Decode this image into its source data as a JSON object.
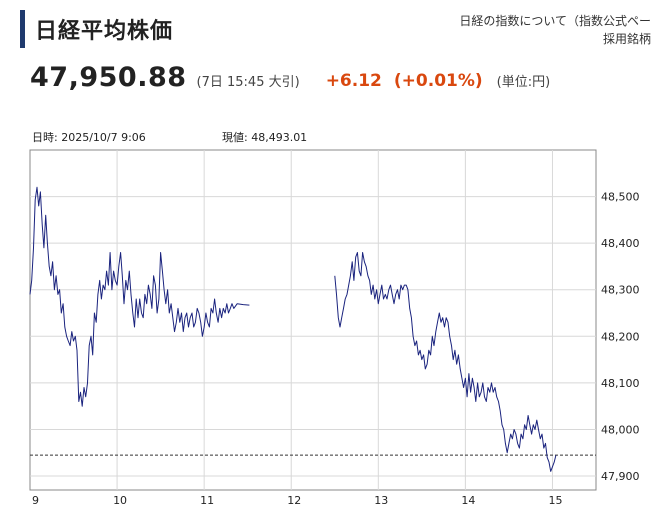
{
  "header": {
    "title": "日経平均株価",
    "info_link_line1": "日経の指数について（指数公式ペー",
    "info_link_line2": "採用銘柄"
  },
  "quote": {
    "price": "47,950.88",
    "time": "(7日 15:45 大引)",
    "change": "+6.12",
    "change_pct": "(+0.01%)",
    "unit": "(単位:円)"
  },
  "chart_info": {
    "datetime_label": "日時: 2025/10/7  9:06",
    "current_label": "現値: 48,493.01"
  },
  "chart_data": {
    "type": "line",
    "title": "",
    "xlabel": "",
    "ylabel": "",
    "ylim": [
      47870,
      48600
    ],
    "xlim": [
      9.0,
      15.5
    ],
    "x_ticks": [
      9,
      10,
      11,
      12,
      13,
      14,
      15
    ],
    "x_tick_labels": [
      "9",
      "10",
      "11",
      "12",
      "13",
      "14",
      "15"
    ],
    "y_ticks": [
      47900,
      48000,
      48100,
      48200,
      48300,
      48400,
      48500
    ],
    "y_tick_labels": [
      "47,900",
      "48,000",
      "48,100",
      "48,200",
      "48,300",
      "48,400",
      "48,500"
    ],
    "grid": true,
    "reference_line": {
      "value": 47944.76,
      "style": "dashed"
    },
    "series": [
      {
        "color": "#1a237e",
        "segments": [
          [
            [
              9.0,
              48290
            ],
            [
              9.02,
              48320
            ],
            [
              9.04,
              48390
            ],
            [
              9.06,
              48493
            ],
            [
              9.08,
              48520
            ],
            [
              9.1,
              48480
            ],
            [
              9.12,
              48510
            ],
            [
              9.14,
              48440
            ],
            [
              9.16,
              48390
            ],
            [
              9.18,
              48460
            ],
            [
              9.2,
              48400
            ],
            [
              9.22,
              48350
            ],
            [
              9.24,
              48330
            ],
            [
              9.26,
              48360
            ],
            [
              9.28,
              48300
            ],
            [
              9.3,
              48330
            ],
            [
              9.32,
              48290
            ],
            [
              9.34,
              48300
            ],
            [
              9.36,
              48250
            ],
            [
              9.38,
              48270
            ],
            [
              9.4,
              48220
            ],
            [
              9.42,
              48200
            ],
            [
              9.44,
              48190
            ],
            [
              9.46,
              48180
            ],
            [
              9.48,
              48210
            ],
            [
              9.5,
              48190
            ],
            [
              9.52,
              48200
            ],
            [
              9.54,
              48170
            ],
            [
              9.56,
              48060
            ],
            [
              9.58,
              48080
            ],
            [
              9.6,
              48050
            ],
            [
              9.62,
              48090
            ],
            [
              9.64,
              48070
            ],
            [
              9.66,
              48100
            ],
            [
              9.68,
              48180
            ],
            [
              9.7,
              48200
            ],
            [
              9.72,
              48160
            ],
            [
              9.74,
              48250
            ],
            [
              9.76,
              48230
            ],
            [
              9.78,
              48290
            ],
            [
              9.8,
              48320
            ],
            [
              9.82,
              48280
            ],
            [
              9.84,
              48310
            ],
            [
              9.86,
              48300
            ],
            [
              9.88,
              48340
            ],
            [
              9.9,
              48310
            ],
            [
              9.92,
              48380
            ],
            [
              9.94,
              48300
            ],
            [
              9.96,
              48340
            ],
            [
              9.98,
              48320
            ],
            [
              10.0,
              48310
            ],
            [
              10.02,
              48350
            ],
            [
              10.04,
              48380
            ],
            [
              10.06,
              48330
            ],
            [
              10.08,
              48270
            ],
            [
              10.1,
              48320
            ],
            [
              10.12,
              48300
            ],
            [
              10.14,
              48340
            ],
            [
              10.16,
              48290
            ],
            [
              10.18,
              48250
            ],
            [
              10.2,
              48220
            ],
            [
              10.22,
              48280
            ],
            [
              10.24,
              48240
            ],
            [
              10.26,
              48280
            ],
            [
              10.28,
              48250
            ],
            [
              10.3,
              48240
            ],
            [
              10.32,
              48290
            ],
            [
              10.34,
              48270
            ],
            [
              10.36,
              48310
            ],
            [
              10.38,
              48290
            ],
            [
              10.4,
              48260
            ],
            [
              10.42,
              48330
            ],
            [
              10.44,
              48310
            ],
            [
              10.46,
              48250
            ],
            [
              10.48,
              48280
            ],
            [
              10.5,
              48380
            ],
            [
              10.52,
              48340
            ],
            [
              10.54,
              48300
            ],
            [
              10.56,
              48270
            ],
            [
              10.58,
              48300
            ],
            [
              10.6,
              48250
            ],
            [
              10.62,
              48270
            ],
            [
              10.64,
              48240
            ],
            [
              10.66,
              48210
            ],
            [
              10.68,
              48230
            ],
            [
              10.7,
              48260
            ],
            [
              10.72,
              48230
            ],
            [
              10.74,
              48250
            ],
            [
              10.76,
              48210
            ],
            [
              10.78,
              48240
            ],
            [
              10.8,
              48250
            ],
            [
              10.82,
              48220
            ],
            [
              10.84,
              48240
            ],
            [
              10.86,
              48250
            ],
            [
              10.88,
              48220
            ],
            [
              10.9,
              48230
            ],
            [
              10.92,
              48260
            ],
            [
              10.94,
              48250
            ],
            [
              10.96,
              48230
            ],
            [
              10.98,
              48200
            ],
            [
              11.0,
              48220
            ],
            [
              11.02,
              48250
            ],
            [
              11.04,
              48230
            ],
            [
              11.06,
              48220
            ],
            [
              11.08,
              48260
            ],
            [
              11.1,
              48250
            ],
            [
              11.12,
              48280
            ],
            [
              11.14,
              48250
            ],
            [
              11.16,
              48230
            ],
            [
              11.18,
              48260
            ],
            [
              11.2,
              48240
            ],
            [
              11.22,
              48260
            ],
            [
              11.24,
              48250
            ],
            [
              11.26,
              48270
            ],
            [
              11.28,
              48250
            ],
            [
              11.3,
              48260
            ],
            [
              11.32,
              48270
            ],
            [
              11.34,
              48260
            ],
            [
              11.38,
              48270
            ],
            [
              11.45,
              48268
            ],
            [
              11.52,
              48267
            ]
          ],
          [
            [
              12.5,
              48330
            ],
            [
              12.52,
              48290
            ],
            [
              12.54,
              48240
            ],
            [
              12.56,
              48220
            ],
            [
              12.58,
              48240
            ],
            [
              12.6,
              48260
            ],
            [
              12.62,
              48280
            ],
            [
              12.64,
              48290
            ],
            [
              12.66,
              48310
            ],
            [
              12.68,
              48330
            ],
            [
              12.7,
              48360
            ],
            [
              12.72,
              48320
            ],
            [
              12.74,
              48370
            ],
            [
              12.76,
              48380
            ],
            [
              12.78,
              48340
            ],
            [
              12.8,
              48330
            ],
            [
              12.82,
              48380
            ],
            [
              12.84,
              48360
            ],
            [
              12.86,
              48350
            ],
            [
              12.88,
              48330
            ],
            [
              12.9,
              48320
            ],
            [
              12.92,
              48290
            ],
            [
              12.94,
              48310
            ],
            [
              12.96,
              48280
            ],
            [
              12.98,
              48300
            ],
            [
              13.0,
              48270
            ],
            [
              13.02,
              48290
            ],
            [
              13.04,
              48310
            ],
            [
              13.06,
              48280
            ],
            [
              13.08,
              48290
            ],
            [
              13.1,
              48280
            ],
            [
              13.12,
              48300
            ],
            [
              13.14,
              48310
            ],
            [
              13.16,
              48290
            ],
            [
              13.18,
              48270
            ],
            [
              13.2,
              48290
            ],
            [
              13.22,
              48300
            ],
            [
              13.24,
              48280
            ],
            [
              13.26,
              48310
            ],
            [
              13.28,
              48300
            ],
            [
              13.3,
              48310
            ],
            [
              13.32,
              48310
            ],
            [
              13.34,
              48300
            ],
            [
              13.36,
              48260
            ],
            [
              13.38,
              48240
            ],
            [
              13.4,
              48200
            ],
            [
              13.42,
              48180
            ],
            [
              13.44,
              48190
            ],
            [
              13.46,
              48160
            ],
            [
              13.48,
              48170
            ],
            [
              13.5,
              48150
            ],
            [
              13.52,
              48160
            ],
            [
              13.54,
              48130
            ],
            [
              13.56,
              48140
            ],
            [
              13.58,
              48170
            ],
            [
              13.6,
              48160
            ],
            [
              13.62,
              48200
            ],
            [
              13.64,
              48180
            ],
            [
              13.66,
              48210
            ],
            [
              13.68,
              48230
            ],
            [
              13.7,
              48250
            ],
            [
              13.72,
              48230
            ],
            [
              13.74,
              48240
            ],
            [
              13.76,
              48220
            ],
            [
              13.78,
              48240
            ],
            [
              13.8,
              48230
            ],
            [
              13.82,
              48200
            ],
            [
              13.84,
              48180
            ],
            [
              13.86,
              48150
            ],
            [
              13.88,
              48170
            ],
            [
              13.9,
              48140
            ],
            [
              13.92,
              48160
            ],
            [
              13.94,
              48130
            ],
            [
              13.96,
              48110
            ],
            [
              13.98,
              48090
            ],
            [
              14.0,
              48110
            ],
            [
              14.02,
              48070
            ],
            [
              14.04,
              48120
            ],
            [
              14.06,
              48080
            ],
            [
              14.08,
              48110
            ],
            [
              14.1,
              48090
            ],
            [
              14.12,
              48060
            ],
            [
              14.14,
              48100
            ],
            [
              14.16,
              48070
            ],
            [
              14.18,
              48080
            ],
            [
              14.2,
              48100
            ],
            [
              14.22,
              48070
            ],
            [
              14.24,
              48060
            ],
            [
              14.26,
              48090
            ],
            [
              14.28,
              48080
            ],
            [
              14.3,
              48100
            ],
            [
              14.32,
              48080
            ],
            [
              14.34,
              48090
            ],
            [
              14.36,
              48070
            ],
            [
              14.38,
              48060
            ],
            [
              14.4,
              48040
            ],
            [
              14.42,
              48010
            ],
            [
              14.44,
              48000
            ],
            [
              14.46,
              47970
            ],
            [
              14.48,
              47950
            ],
            [
              14.5,
              47970
            ],
            [
              14.52,
              47990
            ],
            [
              14.54,
              47980
            ],
            [
              14.56,
              48000
            ],
            [
              14.58,
              47990
            ],
            [
              14.6,
              47970
            ],
            [
              14.62,
              47960
            ],
            [
              14.64,
              47990
            ],
            [
              14.66,
              47980
            ],
            [
              14.68,
              48010
            ],
            [
              14.7,
              48000
            ],
            [
              14.72,
              48030
            ],
            [
              14.74,
              48010
            ],
            [
              14.76,
              47990
            ],
            [
              14.78,
              48010
            ],
            [
              14.8,
              48000
            ],
            [
              14.82,
              48020
            ],
            [
              14.84,
              48000
            ],
            [
              14.86,
              47980
            ],
            [
              14.88,
              47990
            ],
            [
              14.9,
              47960
            ],
            [
              14.92,
              47970
            ],
            [
              14.94,
              47940
            ],
            [
              14.96,
              47930
            ],
            [
              14.98,
              47910
            ],
            [
              15.0,
              47920
            ],
            [
              15.02,
              47930
            ],
            [
              15.04,
              47944.76
            ]
          ]
        ]
      }
    ]
  }
}
